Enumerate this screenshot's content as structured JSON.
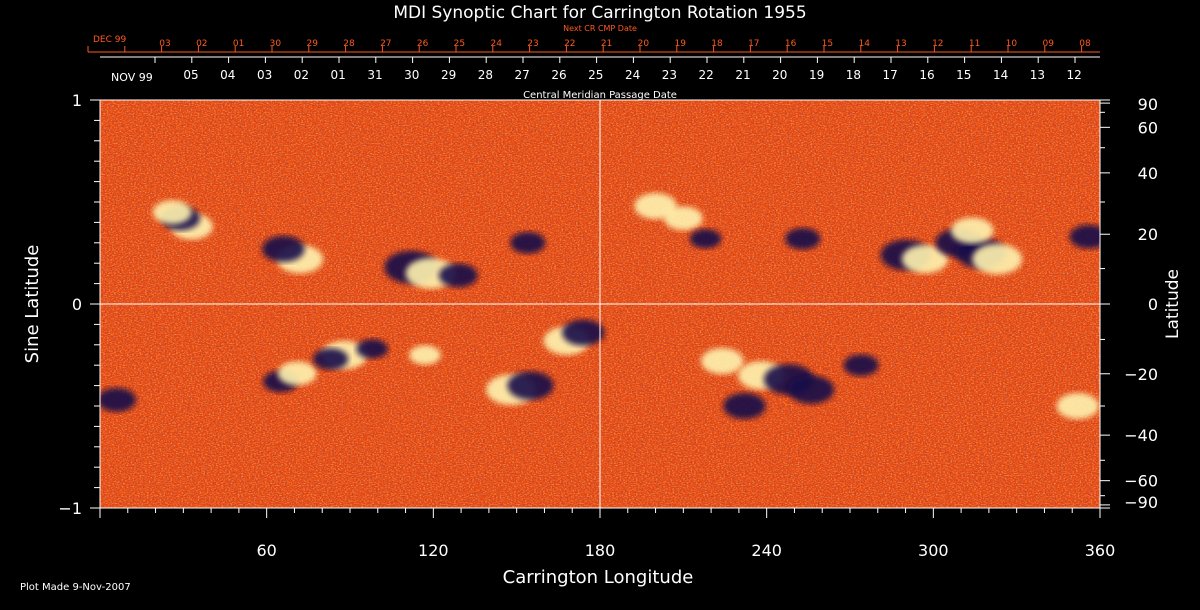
{
  "chart_data": {
    "type": "heatmap",
    "title": "MDI Synoptic Chart for Carrington Rotation 1955",
    "top_axis_red": {
      "label": "Next CR CMP Date",
      "month_label": "DEC 99",
      "ticks": [
        "03",
        "02",
        "01",
        "30",
        "29",
        "28",
        "27",
        "26",
        "25",
        "24",
        "23",
        "22",
        "21",
        "20",
        "19",
        "18",
        "17",
        "16",
        "15",
        "14",
        "13",
        "12",
        "11",
        "10",
        "09",
        "08"
      ]
    },
    "top_axis_white": {
      "label": "Central Meridian Passage Date",
      "month_label": "NOV 99",
      "ticks": [
        "05",
        "04",
        "03",
        "02",
        "01",
        "31",
        "30",
        "29",
        "28",
        "27",
        "26",
        "25",
        "24",
        "23",
        "22",
        "21",
        "20",
        "19",
        "18",
        "17",
        "16",
        "15",
        "14",
        "13",
        "12"
      ]
    },
    "xlabel": "Carrington Longitude",
    "xlim": [
      0,
      360
    ],
    "x_ticks": [
      "60",
      "120",
      "180",
      "240",
      "300",
      "360"
    ],
    "x_tick_values": [
      60,
      120,
      180,
      240,
      300,
      360
    ],
    "ylabel_left": "Sine Latitude",
    "ylim": [
      -1,
      1
    ],
    "y_ticks_left": [
      "1",
      "0",
      "−1"
    ],
    "y_tick_values_left": [
      1,
      0,
      -1
    ],
    "ylabel_right": "Latitude",
    "y_ticks_right": [
      "90",
      "60",
      "40",
      "20",
      "0",
      "−20",
      "−40",
      "−60",
      "−90"
    ],
    "y_tick_values_right": [
      90,
      60,
      40,
      20,
      0,
      -20,
      -40,
      -60,
      -90
    ],
    "footer": "Plot Made  9-Nov-2007",
    "colors": {
      "background": "#000000",
      "field_base": "#e8470f",
      "positive_polarity": "#fff3b0",
      "negative_polarity": "#140a4a",
      "axis_text": "#ffffff",
      "next_cmp_text": "#ff5a1e",
      "grid": "#ffffff"
    },
    "active_regions": [
      {
        "lon": 33,
        "lat_sin": 0.38,
        "polarity": "positive",
        "strength": 0.6
      },
      {
        "lon": 29,
        "lat_sin": 0.42,
        "polarity": "negative",
        "strength": 0.5
      },
      {
        "lon": 72,
        "lat_sin": 0.22,
        "polarity": "positive",
        "strength": 0.7
      },
      {
        "lon": 66,
        "lat_sin": 0.27,
        "polarity": "negative",
        "strength": 0.6
      },
      {
        "lon": 112,
        "lat_sin": 0.18,
        "polarity": "negative",
        "strength": 0.9
      },
      {
        "lon": 119,
        "lat_sin": 0.15,
        "polarity": "positive",
        "strength": 0.8
      },
      {
        "lon": 129,
        "lat_sin": 0.14,
        "polarity": "negative",
        "strength": 0.5
      },
      {
        "lon": 154,
        "lat_sin": 0.3,
        "polarity": "negative",
        "strength": 0.4
      },
      {
        "lon": 26,
        "lat_sin": 0.45,
        "polarity": "positive",
        "strength": 0.5
      },
      {
        "lon": 200,
        "lat_sin": 0.48,
        "polarity": "positive",
        "strength": 0.6
      },
      {
        "lon": 210,
        "lat_sin": 0.42,
        "polarity": "positive",
        "strength": 0.5
      },
      {
        "lon": 218,
        "lat_sin": 0.32,
        "polarity": "negative",
        "strength": 0.3
      },
      {
        "lon": 253,
        "lat_sin": 0.32,
        "polarity": "negative",
        "strength": 0.4
      },
      {
        "lon": 290,
        "lat_sin": 0.24,
        "polarity": "negative",
        "strength": 0.8
      },
      {
        "lon": 297,
        "lat_sin": 0.22,
        "polarity": "positive",
        "strength": 0.7
      },
      {
        "lon": 309,
        "lat_sin": 0.3,
        "polarity": "negative",
        "strength": 0.7
      },
      {
        "lon": 317,
        "lat_sin": 0.25,
        "polarity": "negative",
        "strength": 0.8
      },
      {
        "lon": 323,
        "lat_sin": 0.22,
        "polarity": "positive",
        "strength": 0.8
      },
      {
        "lon": 314,
        "lat_sin": 0.36,
        "polarity": "positive",
        "strength": 0.6
      },
      {
        "lon": 356,
        "lat_sin": 0.33,
        "polarity": "negative",
        "strength": 0.5
      },
      {
        "lon": 6,
        "lat_sin": -0.47,
        "polarity": "negative",
        "strength": 0.5
      },
      {
        "lon": 65,
        "lat_sin": -0.38,
        "polarity": "negative",
        "strength": 0.4
      },
      {
        "lon": 71,
        "lat_sin": -0.34,
        "polarity": "positive",
        "strength": 0.5
      },
      {
        "lon": 88,
        "lat_sin": -0.25,
        "polarity": "positive",
        "strength": 0.7
      },
      {
        "lon": 83,
        "lat_sin": -0.27,
        "polarity": "negative",
        "strength": 0.4
      },
      {
        "lon": 98,
        "lat_sin": -0.22,
        "polarity": "negative",
        "strength": 0.3
      },
      {
        "lon": 117,
        "lat_sin": -0.25,
        "polarity": "positive",
        "strength": 0.3
      },
      {
        "lon": 148,
        "lat_sin": -0.42,
        "polarity": "positive",
        "strength": 0.8
      },
      {
        "lon": 155,
        "lat_sin": -0.4,
        "polarity": "negative",
        "strength": 0.7
      },
      {
        "lon": 168,
        "lat_sin": -0.18,
        "polarity": "positive",
        "strength": 0.7
      },
      {
        "lon": 174,
        "lat_sin": -0.14,
        "polarity": "negative",
        "strength": 0.6
      },
      {
        "lon": 224,
        "lat_sin": -0.28,
        "polarity": "positive",
        "strength": 0.6
      },
      {
        "lon": 238,
        "lat_sin": -0.35,
        "polarity": "positive",
        "strength": 0.7
      },
      {
        "lon": 248,
        "lat_sin": -0.37,
        "polarity": "negative",
        "strength": 0.8
      },
      {
        "lon": 232,
        "lat_sin": -0.5,
        "polarity": "negative",
        "strength": 0.6
      },
      {
        "lon": 256,
        "lat_sin": -0.42,
        "polarity": "negative",
        "strength": 0.7
      },
      {
        "lon": 274,
        "lat_sin": -0.3,
        "polarity": "negative",
        "strength": 0.4
      },
      {
        "lon": 352,
        "lat_sin": -0.5,
        "polarity": "positive",
        "strength": 0.6
      }
    ]
  }
}
